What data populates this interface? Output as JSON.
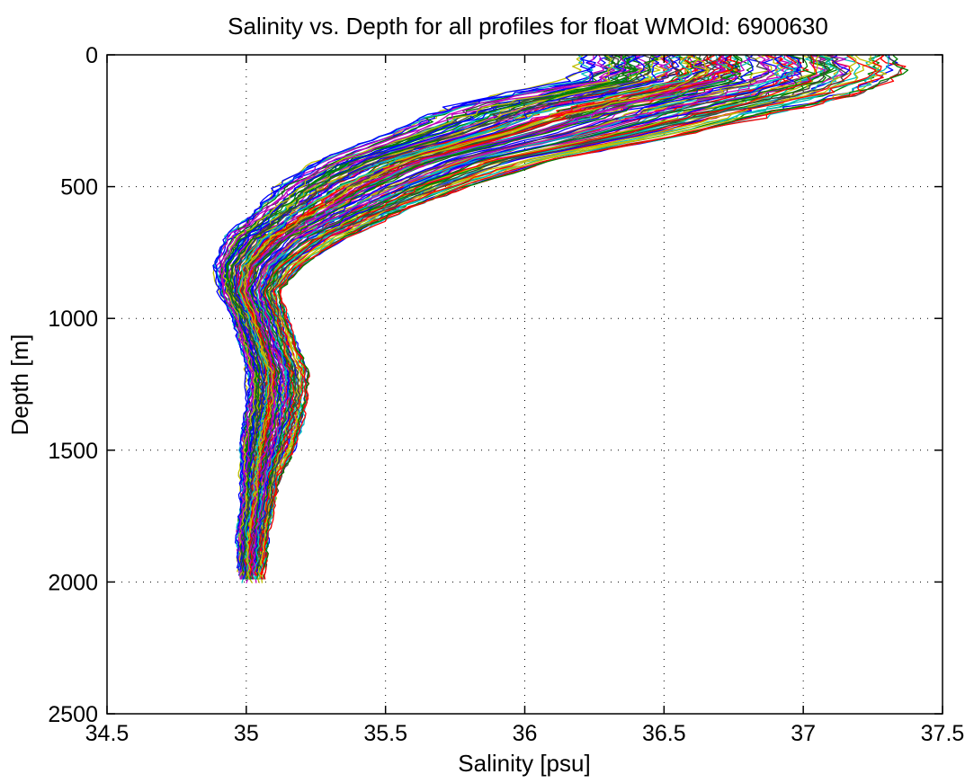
{
  "chart_data": {
    "type": "line",
    "title": "Salinity vs. Depth for all profiles for float WMOId: 6900630",
    "xlabel": "Salinity [psu]",
    "ylabel": "Depth [m]",
    "xlim": [
      34.5,
      37.5
    ],
    "ylim": [
      0,
      2500
    ],
    "y_reversed": true,
    "grid": true,
    "x_ticks": [
      "34.5",
      "35",
      "35.5",
      "36",
      "36.5",
      "37",
      "37.5"
    ],
    "y_ticks": [
      "0",
      "500",
      "1000",
      "1500",
      "2000",
      "2500"
    ],
    "series_colors": [
      "#0000ff",
      "#008000",
      "#ff0000",
      "#00bfbf",
      "#bf00bf",
      "#bfbf00",
      "#404040"
    ],
    "profile_count": 140,
    "envelope": {
      "depth": [
        0,
        60,
        100,
        150,
        200,
        300,
        400,
        500,
        600,
        700,
        800,
        900,
        1000,
        1100,
        1200,
        1300,
        1400,
        1500,
        1600,
        1700,
        1800,
        1900,
        2000
      ],
      "salinity_low": [
        36.2,
        36.2,
        36.15,
        35.9,
        35.7,
        35.5,
        35.25,
        35.1,
        35.02,
        34.92,
        34.88,
        34.9,
        34.95,
        34.98,
        35.0,
        35.0,
        34.99,
        34.98,
        34.98,
        34.98,
        34.97,
        34.97,
        34.97
      ],
      "salinity_high": [
        37.3,
        37.35,
        37.3,
        37.2,
        37.0,
        36.6,
        36.1,
        35.8,
        35.55,
        35.35,
        35.2,
        35.12,
        35.15,
        35.18,
        35.22,
        35.22,
        35.2,
        35.17,
        35.12,
        35.1,
        35.08,
        35.07,
        35.06
      ],
      "salinity_mean": [
        36.75,
        36.95,
        36.95,
        36.6,
        36.35,
        35.95,
        35.65,
        35.4,
        35.2,
        35.05,
        34.97,
        34.98,
        35.02,
        35.05,
        35.08,
        35.08,
        35.06,
        35.05,
        35.04,
        35.03,
        35.02,
        35.01,
        35.01
      ]
    }
  }
}
